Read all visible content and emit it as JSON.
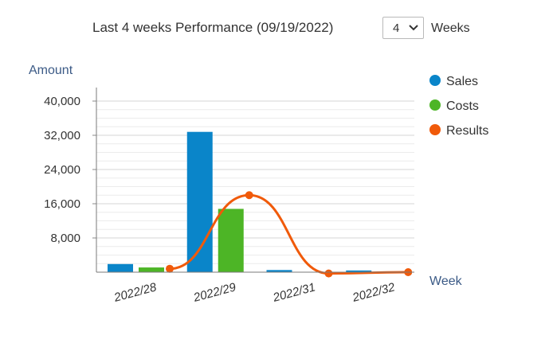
{
  "header": {
    "title": "Last 4 weeks Performance (09/19/2022)",
    "weeks_value": "4",
    "weeks_label": "Weeks"
  },
  "chart_data": {
    "type": "bar",
    "title": "",
    "xlabel": "Week",
    "ylabel": "Amount",
    "categories": [
      "2022/28",
      "2022/29",
      "2022/31",
      "2022/32"
    ],
    "series": [
      {
        "name": "Sales",
        "type": "bar",
        "color": "#0a85c9",
        "values": [
          1900,
          32800,
          500,
          400
        ]
      },
      {
        "name": "Costs",
        "type": "bar",
        "color": "#4db526",
        "values": [
          1100,
          14800,
          0,
          0
        ]
      },
      {
        "name": "Results",
        "type": "line",
        "smooth": true,
        "color": "#f05a0a",
        "values": [
          800,
          18000,
          -300,
          0
        ]
      }
    ],
    "yticks": [
      "8,000",
      "16,000",
      "24,000",
      "32,000",
      "40,000"
    ],
    "ytick_values": [
      8000,
      16000,
      24000,
      32000,
      40000
    ],
    "ylim": [
      0,
      40000
    ],
    "grid": true,
    "legend": "top-right"
  }
}
